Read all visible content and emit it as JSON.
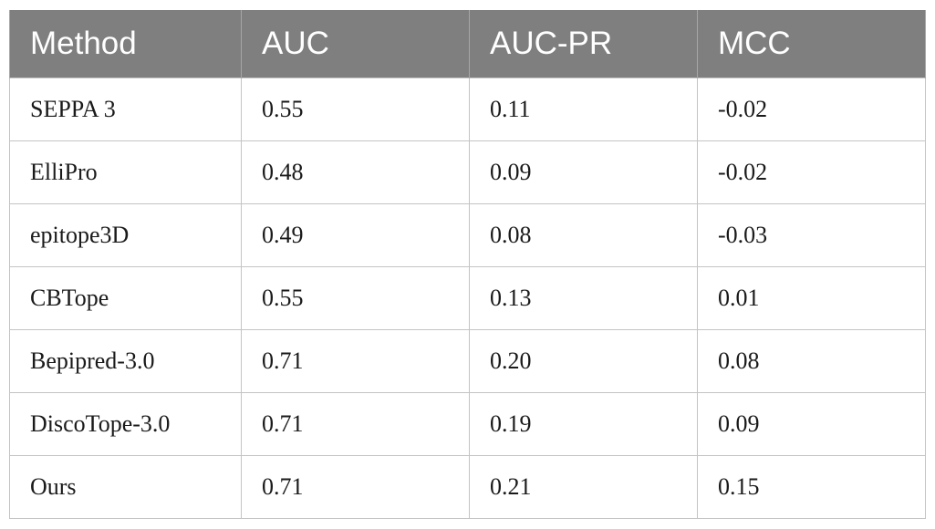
{
  "table": {
    "headers": [
      "Method",
      "AUC",
      "AUC-PR",
      "MCC"
    ],
    "rows": [
      [
        "SEPPA 3",
        "0.55",
        "0.11",
        "-0.02"
      ],
      [
        "ElliPro",
        "0.48",
        "0.09",
        "-0.02"
      ],
      [
        "epitope3D",
        "0.49",
        "0.08",
        "-0.03"
      ],
      [
        "CBTope",
        "0.55",
        "0.13",
        "0.01"
      ],
      [
        "Bepipred-3.0",
        "0.71",
        "0.20",
        "0.08"
      ],
      [
        "DiscoTope-3.0",
        "0.71",
        "0.19",
        "0.09"
      ],
      [
        "Ours",
        "0.71",
        "0.21",
        "0.15"
      ]
    ],
    "colors": {
      "header_background": "#7f7f7f",
      "header_text": "#ffffff",
      "border": "#c4c4c4"
    }
  }
}
